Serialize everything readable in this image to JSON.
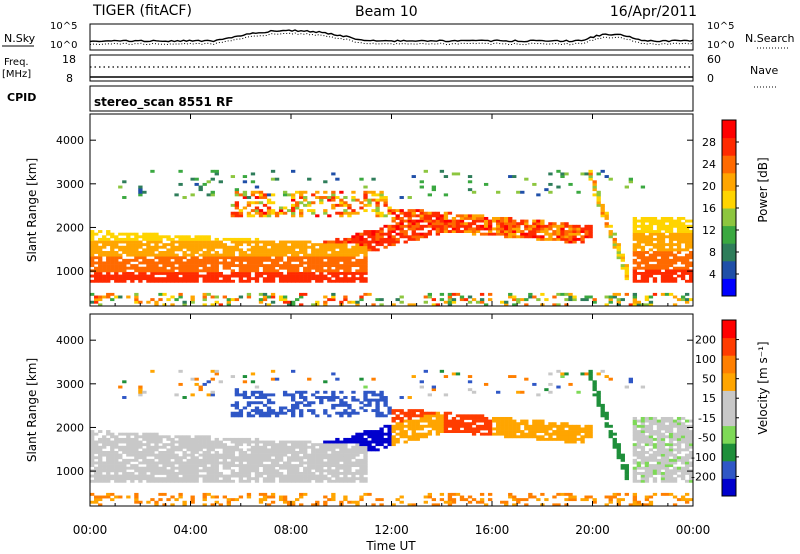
{
  "header": {
    "title": "TIGER (fitACF)",
    "beam": "Beam 10",
    "date": "16/Apr/2011"
  },
  "top_panels": {
    "nsky_label": "N.Sky",
    "nsearch_label": "N.Search",
    "noise_ticks": [
      "10^5",
      "10^0"
    ],
    "freq_label_1": "Freq.",
    "freq_label_2": "[MHz]",
    "freq_ticks": [
      "18",
      "8"
    ],
    "nave_label": "Nave",
    "nave_ticks": [
      "60",
      "0"
    ],
    "cpid_label": "CPID",
    "cpid_value": "stereo_scan 8551 RF"
  },
  "colors": {
    "power_scale": [
      "#0000ff",
      "#1f4fa8",
      "#2e7d5a",
      "#3aa840",
      "#8dc63f",
      "#ffd400",
      "#ffa500",
      "#ff6a00",
      "#ff2a00",
      "#ff0000"
    ],
    "velocity_scale": [
      "#0000cd",
      "#2f57c6",
      "#1e8f3a",
      "#7ed957",
      "#c8c8c8",
      "#c8c8c8",
      "#ffa500",
      "#ff7f00",
      "#ff3c00",
      "#ff0000"
    ]
  },
  "chart_data": [
    {
      "type": "heatmap",
      "name": "power",
      "ylabel": "Slant Range [km]",
      "xlabel": "Time UT",
      "x_ticks": [
        "00:00",
        "04:00",
        "08:00",
        "12:00",
        "16:00",
        "20:00",
        "00:00"
      ],
      "y_ticks": [
        "1000",
        "2000",
        "3000",
        "4000"
      ],
      "ylim": [
        200,
        4600
      ],
      "xlim_hours": [
        0,
        24
      ],
      "colorbar_label": "Power [dB]",
      "colorbar_ticks": [
        "28",
        "24",
        "20",
        "16",
        "12",
        "8",
        "4"
      ],
      "colorbar_range": [
        0,
        30
      ]
    },
    {
      "type": "heatmap",
      "name": "velocity",
      "ylabel": "Slant Range [km]",
      "xlabel": "Time UT",
      "x_ticks": [
        "00:00",
        "04:00",
        "08:00",
        "12:00",
        "16:00",
        "20:00",
        "00:00"
      ],
      "y_ticks": [
        "1000",
        "2000",
        "3000",
        "4000"
      ],
      "ylim": [
        200,
        4600
      ],
      "xlim_hours": [
        0,
        24
      ],
      "colorbar_label": "Velocity [m s⁻¹]",
      "colorbar_ticks": [
        "200",
        "100",
        "50",
        "15",
        "-15",
        "-50",
        "-100",
        "-200"
      ],
      "colorbar_range": [
        -250,
        250
      ]
    }
  ],
  "xaxis_title": "Time UT"
}
